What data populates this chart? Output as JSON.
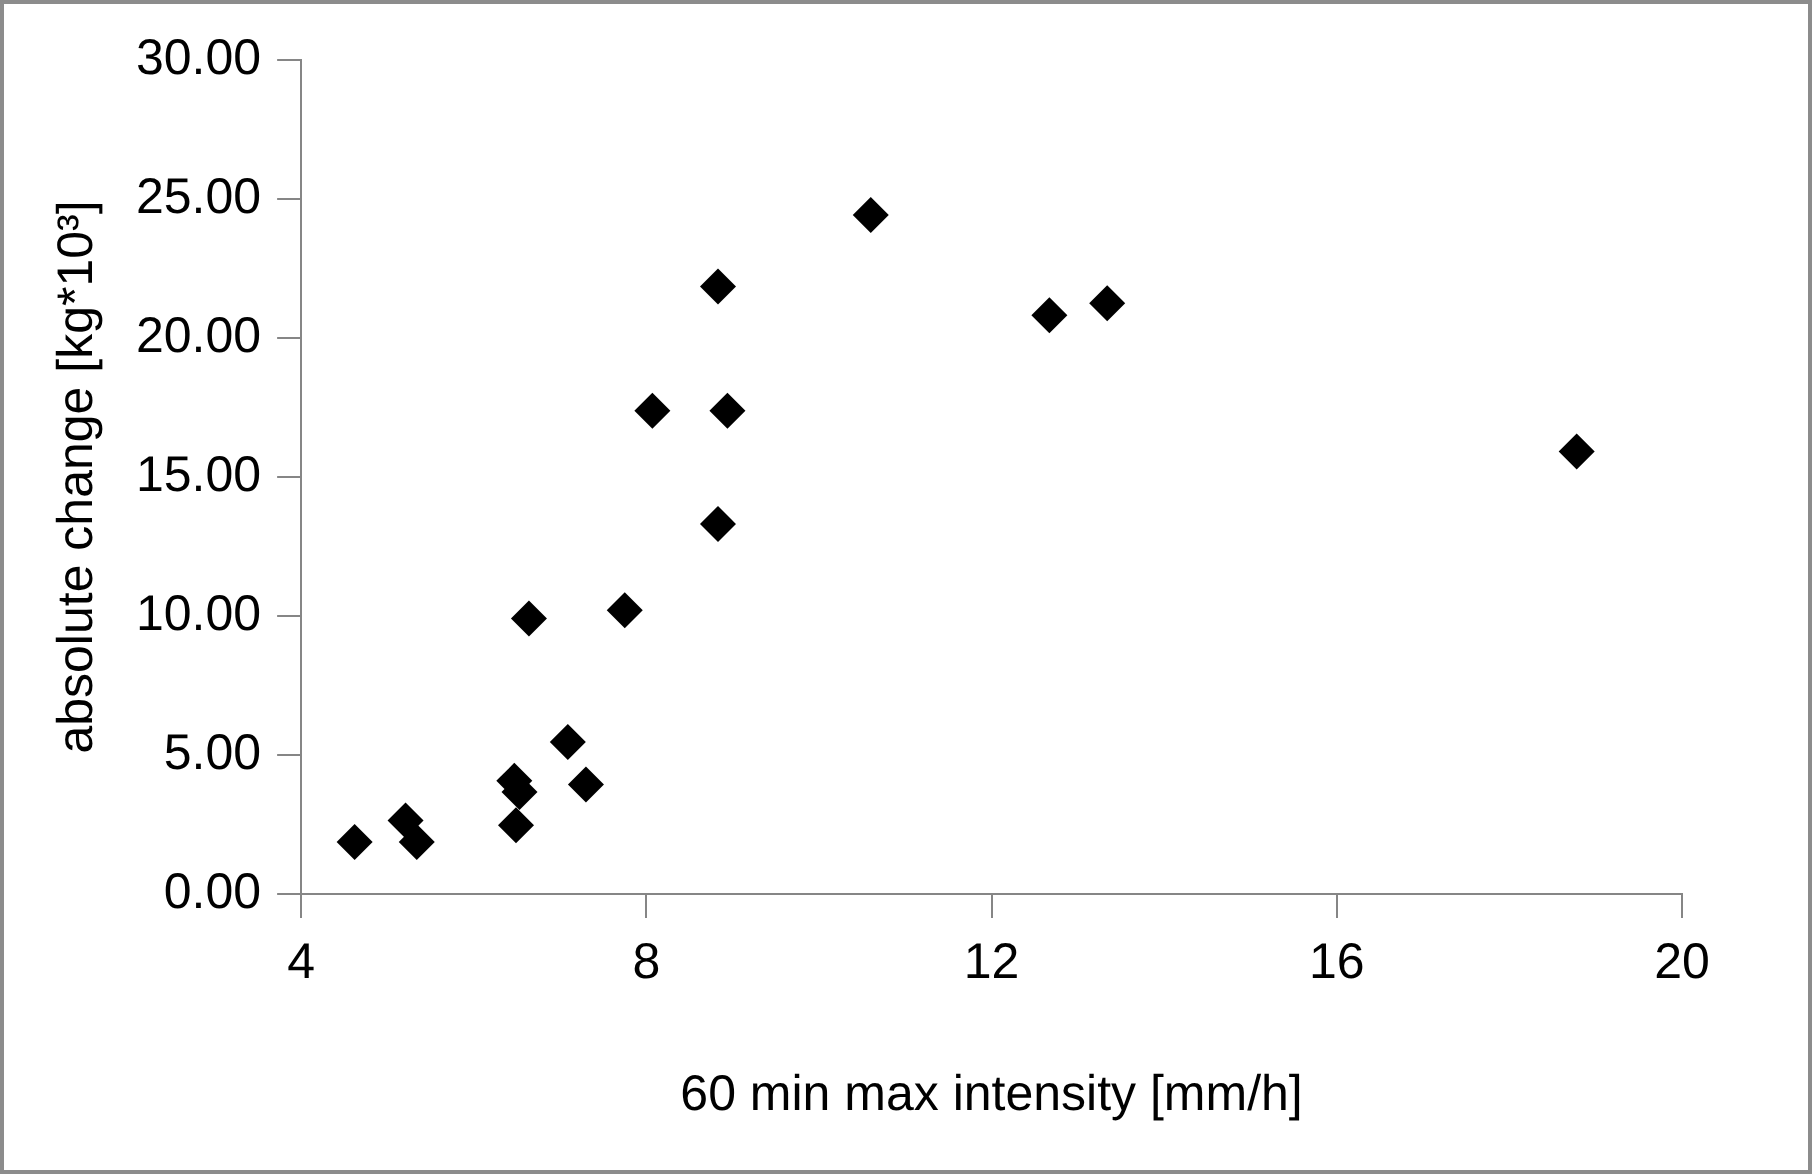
{
  "chart_data": {
    "type": "scatter",
    "xlabel": "60 min max intensity [mm/h]",
    "ylabel": "absolute change [kg*10³]",
    "x": [
      4.62,
      5.21,
      5.34,
      6.49,
      6.47,
      6.53,
      7.09,
      7.3,
      6.64,
      7.75,
      8.83,
      8.07,
      8.94,
      8.83,
      10.6,
      12.67,
      13.34,
      18.78
    ],
    "series": [
      {
        "color": "#000000",
        "values": [
          1.87,
          2.64,
          1.87,
          2.47,
          4.07,
          3.67,
          5.47,
          3.94,
          9.91,
          10.21,
          13.31,
          17.38,
          17.38,
          21.85,
          24.42,
          20.82,
          21.25,
          15.92
        ]
      }
    ],
    "xlim": [
      4,
      20
    ],
    "xticks": [
      4,
      8,
      12,
      16,
      20
    ],
    "ylim": [
      0,
      30
    ],
    "yticks": [
      {
        "value": 0,
        "label": "0.00"
      },
      {
        "value": 5,
        "label": "5.00"
      },
      {
        "value": 10,
        "label": "10.00"
      },
      {
        "value": 15,
        "label": "15.00"
      },
      {
        "value": 20,
        "label": "20.00"
      },
      {
        "value": 25,
        "label": "25.00"
      },
      {
        "value": 30,
        "label": "30.00"
      }
    ],
    "grid": false,
    "legend": false,
    "marker": "diamond"
  }
}
